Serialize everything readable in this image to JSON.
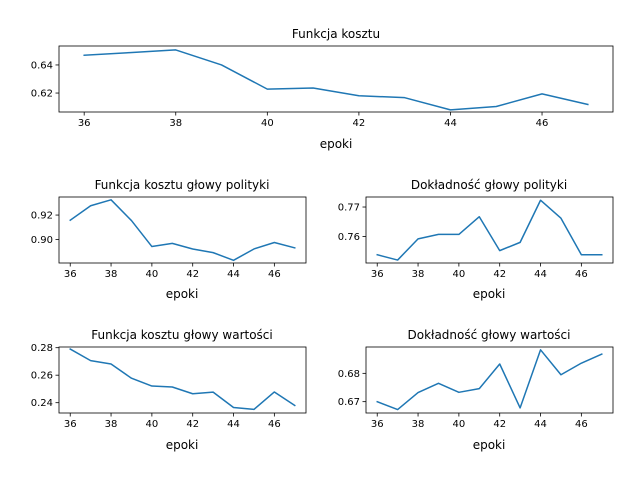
{
  "figure": {
    "background": "#ffffff",
    "line_color": "#1f77b4"
  },
  "chart_data": [
    {
      "type": "line",
      "title": "Funkcja kosztu",
      "xlabel": "epoki",
      "ylabel": "",
      "xlim": [
        35.45,
        47.55
      ],
      "ylim": [
        0.6065,
        0.6535
      ],
      "xticks": [
        36,
        38,
        40,
        42,
        44,
        46
      ],
      "yticks": [
        0.62,
        0.64
      ],
      "ytick_labels": [
        "0.62",
        "0.64"
      ],
      "grid": false,
      "series": [
        {
          "x": [
            36,
            37,
            38,
            39,
            40,
            41,
            42,
            43,
            44,
            45,
            46,
            47
          ],
          "values": [
            0.6469,
            0.6488,
            0.6507,
            0.64,
            0.6228,
            0.6236,
            0.6181,
            0.6167,
            0.608,
            0.6104,
            0.6194,
            0.6119
          ]
        }
      ]
    },
    {
      "type": "line",
      "title": "Funkcja kosztu głowy polityki",
      "xlabel": "epoki",
      "ylabel": "",
      "xlim": [
        35.45,
        47.55
      ],
      "ylim": [
        0.8807,
        0.9348
      ],
      "xticks": [
        36,
        38,
        40,
        42,
        44,
        46
      ],
      "yticks": [
        0.9,
        0.92
      ],
      "ytick_labels": [
        "0.90",
        "0.92"
      ],
      "grid": false,
      "series": [
        {
          "x": [
            36,
            37,
            38,
            39,
            40,
            41,
            42,
            43,
            44,
            45,
            46,
            47
          ],
          "values": [
            0.9158,
            0.9276,
            0.9325,
            0.9155,
            0.8942,
            0.8968,
            0.8922,
            0.8892,
            0.8829,
            0.8922,
            0.8975,
            0.8931
          ]
        }
      ]
    },
    {
      "type": "line",
      "title": "Dokładność głowy polityki",
      "xlabel": "epoki",
      "ylabel": "",
      "xlim": [
        35.45,
        47.55
      ],
      "ylim": [
        0.751,
        0.7734
      ],
      "xticks": [
        36,
        38,
        40,
        42,
        44,
        46
      ],
      "yticks": [
        0.76,
        0.77
      ],
      "ytick_labels": [
        "0.76",
        "0.77"
      ],
      "grid": false,
      "series": [
        {
          "x": [
            36,
            37,
            38,
            39,
            40,
            41,
            42,
            43,
            44,
            45,
            46,
            47
          ],
          "values": [
            0.7538,
            0.752,
            0.7592,
            0.7607,
            0.7607,
            0.7667,
            0.7552,
            0.758,
            0.7723,
            0.7662,
            0.7538,
            0.7538
          ]
        }
      ]
    },
    {
      "type": "line",
      "title": "Funkcja kosztu głowy wartości",
      "xlabel": "epoki",
      "ylabel": "",
      "xlim": [
        35.45,
        47.55
      ],
      "ylim": [
        0.2325,
        0.2805
      ],
      "xticks": [
        36,
        38,
        40,
        42,
        44,
        46
      ],
      "yticks": [
        0.24,
        0.26,
        0.28
      ],
      "ytick_labels": [
        "0.24",
        "0.26",
        "0.28"
      ],
      "grid": false,
      "series": [
        {
          "x": [
            36,
            37,
            38,
            39,
            40,
            41,
            42,
            43,
            44,
            45,
            46,
            47
          ],
          "values": [
            0.279,
            0.2706,
            0.2681,
            0.2578,
            0.2521,
            0.2514,
            0.2465,
            0.2477,
            0.2365,
            0.2351,
            0.2478,
            0.238
          ]
        }
      ]
    },
    {
      "type": "line",
      "title": "Dokładność głowy wartości",
      "xlabel": "epoki",
      "ylabel": "",
      "xlim": [
        35.45,
        47.55
      ],
      "ylim": [
        0.666,
        0.6893
      ],
      "xticks": [
        36,
        38,
        40,
        42,
        44,
        46
      ],
      "yticks": [
        0.67,
        0.68
      ],
      "ytick_labels": [
        "0.67",
        "0.68"
      ],
      "grid": false,
      "series": [
        {
          "x": [
            36,
            37,
            38,
            39,
            40,
            41,
            42,
            43,
            44,
            45,
            46,
            47
          ],
          "values": [
            0.67,
            0.6672,
            0.6732,
            0.6765,
            0.6733,
            0.6746,
            0.6833,
            0.6678,
            0.6883,
            0.6795,
            0.6836,
            0.6868
          ]
        }
      ]
    }
  ]
}
